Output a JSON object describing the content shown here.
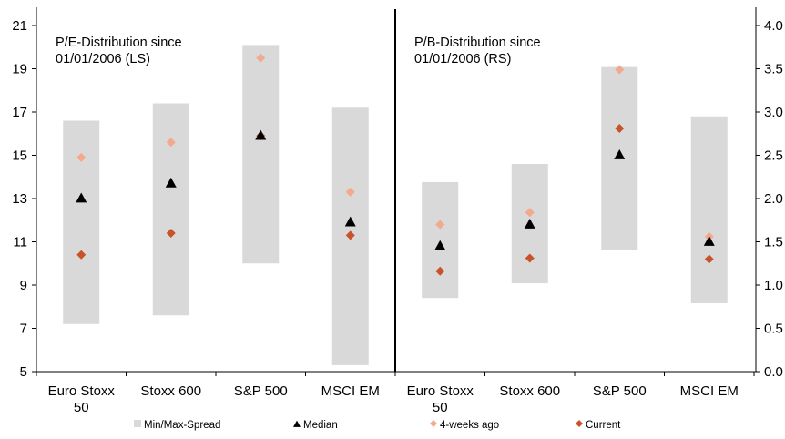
{
  "chart_data": {
    "type": "scatter",
    "left_axis": {
      "min": 5,
      "max": 21,
      "ticks": [
        "5",
        "7",
        "9",
        "11",
        "13",
        "15",
        "17",
        "19",
        "21"
      ]
    },
    "right_axis": {
      "min": 0.0,
      "max": 4.0,
      "ticks": [
        "0.0",
        "0.5",
        "1.0",
        "1.5",
        "2.0",
        "2.5",
        "3.0",
        "3.5",
        "4.0"
      ]
    },
    "panels": [
      {
        "title_line1": "P/E-Distribution since",
        "title_line2": "01/01/2006 (LS)",
        "axis": "left",
        "categories": [
          {
            "line1": "Euro Stoxx",
            "line2": "50"
          },
          {
            "line1": "Stoxx 600",
            "line2": ""
          },
          {
            "line1": "S&P 500",
            "line2": ""
          },
          {
            "line1": "MSCI EM",
            "line2": ""
          }
        ],
        "min": [
          7.2,
          7.6,
          10.0,
          5.3
        ],
        "max": [
          16.6,
          17.4,
          20.1,
          17.2
        ],
        "median": [
          13.0,
          13.7,
          15.9,
          11.9
        ],
        "four_weeks_ago": [
          14.9,
          15.6,
          19.5,
          13.3
        ],
        "current": [
          10.4,
          11.4,
          15.9,
          11.3
        ]
      },
      {
        "title_line1": "P/B-Distribution since",
        "title_line2": "01/01/2006 (RS)",
        "axis": "right",
        "categories": [
          {
            "line1": "Euro Stoxx",
            "line2": "50"
          },
          {
            "line1": "Stoxx 600",
            "line2": ""
          },
          {
            "line1": "S&P 500",
            "line2": ""
          },
          {
            "line1": "MSCI EM",
            "line2": ""
          }
        ],
        "min": [
          0.85,
          1.02,
          1.4,
          0.79
        ],
        "max": [
          2.19,
          2.4,
          3.52,
          2.95
        ],
        "median": [
          1.45,
          1.7,
          2.5,
          1.5
        ],
        "four_weeks_ago": [
          1.7,
          1.84,
          3.49,
          1.56
        ],
        "current": [
          1.16,
          1.31,
          2.81,
          1.3
        ]
      }
    ],
    "legend": [
      {
        "key": "spread",
        "label": "Min/Max-Spread",
        "color": "#d9d9d9"
      },
      {
        "key": "median",
        "label": "Median",
        "color": "#000000"
      },
      {
        "key": "four_weeks_ago",
        "label": "4-weeks ago",
        "color": "#f2a98c"
      },
      {
        "key": "current",
        "label": "Current",
        "color": "#c9522a"
      }
    ]
  }
}
